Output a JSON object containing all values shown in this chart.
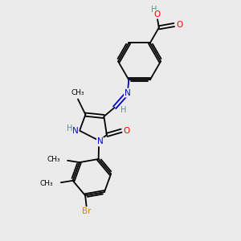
{
  "background_color": "#ebebeb",
  "atom_colors": {
    "C": "#000000",
    "H": "#5a9090",
    "O": "#ff0000",
    "N": "#0000cc",
    "Br": "#cc8800"
  },
  "bond_color": "#000000",
  "figsize": [
    3.0,
    3.0
  ],
  "dpi": 100,
  "xlim": [
    0,
    10
  ],
  "ylim": [
    0,
    10
  ]
}
